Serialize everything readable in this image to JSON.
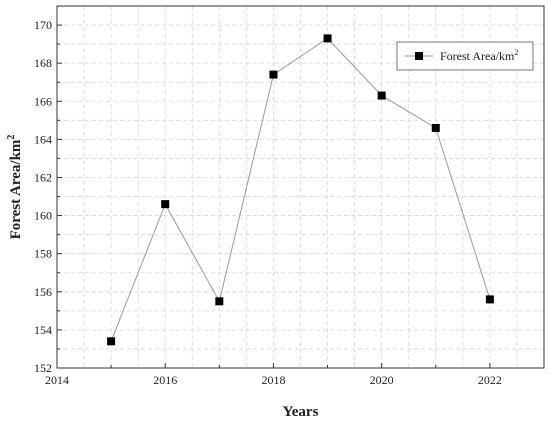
{
  "chart_data": {
    "type": "line",
    "xlabel": "Years",
    "ylabel": "Forest Area/km",
    "ylabel_sup": "2",
    "xlim": [
      2014,
      2023
    ],
    "ylim": [
      152,
      171
    ],
    "x_ticks": [
      2014,
      2016,
      2018,
      2020,
      2022
    ],
    "y_ticks": [
      152,
      154,
      156,
      158,
      160,
      162,
      164,
      166,
      168,
      170
    ],
    "grid": true,
    "legend_position": "top-right",
    "series": [
      {
        "name": "Forest Area/km",
        "name_sup": "2",
        "marker": "square",
        "marker_color": "#000000",
        "line_color": "#9a9a9a",
        "x": [
          2015,
          2016,
          2017,
          2018,
          2019,
          2020,
          2021,
          2022
        ],
        "y": [
          153.4,
          160.6,
          155.5,
          167.4,
          169.3,
          166.3,
          164.6,
          155.6
        ]
      }
    ]
  }
}
